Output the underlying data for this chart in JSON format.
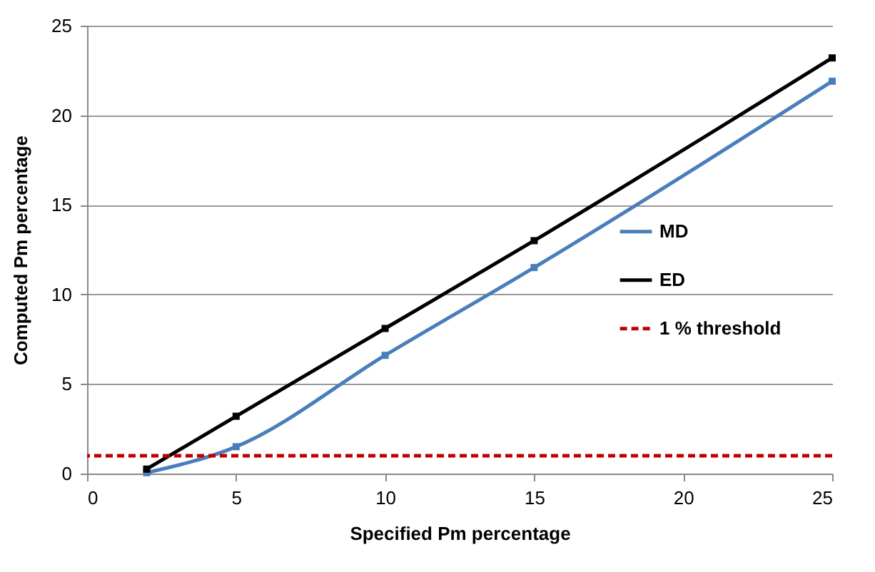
{
  "chart_data": {
    "type": "line",
    "xlabel": "Specified Pm percentage",
    "ylabel": "Computed Pm percentage",
    "x": [
      2,
      5,
      10,
      15,
      25
    ],
    "series": [
      {
        "name": "MD",
        "color": "#4a7ebb",
        "values": [
          0.05,
          1.5,
          6.6,
          11.5,
          21.9
        ]
      },
      {
        "name": "ED",
        "color": "#000000",
        "values": [
          0.25,
          3.2,
          8.1,
          13.0,
          23.2
        ]
      }
    ],
    "ref_lines": [
      {
        "axis": "y",
        "value": 1,
        "label": "1 % threshold",
        "color": "#c00000",
        "line_style": "dashed"
      }
    ],
    "xlim": [
      0,
      25
    ],
    "xticks": [
      0,
      5,
      10,
      15,
      20,
      25
    ],
    "ylim": [
      0,
      25
    ],
    "yticks": [
      0,
      5,
      10,
      15,
      20,
      25
    ],
    "grid": "y",
    "legend": "right",
    "marker": "square",
    "line_style": "solid"
  }
}
